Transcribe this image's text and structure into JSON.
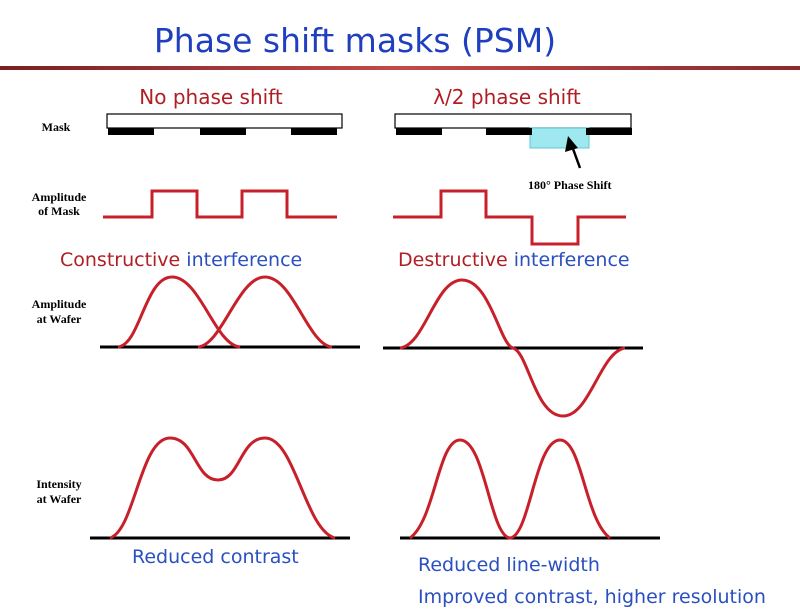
{
  "title": "Phase shift masks (PSM)",
  "colors": {
    "title": "#1f3fbf",
    "red_text": "#b01e24",
    "blue_text": "#2a4fc0",
    "wave": "#c8202a",
    "rule": "#b23a3a",
    "phase_shifter": "#9fe8f0"
  },
  "columns": {
    "left": {
      "heading": "No phase shift",
      "interference_a": "Constructive",
      "interference_b": "interference",
      "result": "Reduced contrast"
    },
    "right": {
      "heading": "λ/2 phase shift",
      "interference_a": "Destructive",
      "interference_b": "interference",
      "result_line1": "Reduced line-width",
      "result_line2": "Improved contrast, higher resolution",
      "annotation": "180° Phase Shift"
    }
  },
  "row_labels": {
    "mask": "Mask",
    "amp_mask_1": "Amplitude",
    "amp_mask_2": "of Mask",
    "amp_wafer_1": "Amplitude",
    "amp_wafer_2": "at Wafer",
    "int_wafer_1": "Intensity",
    "int_wafer_2": "at Wafer"
  }
}
